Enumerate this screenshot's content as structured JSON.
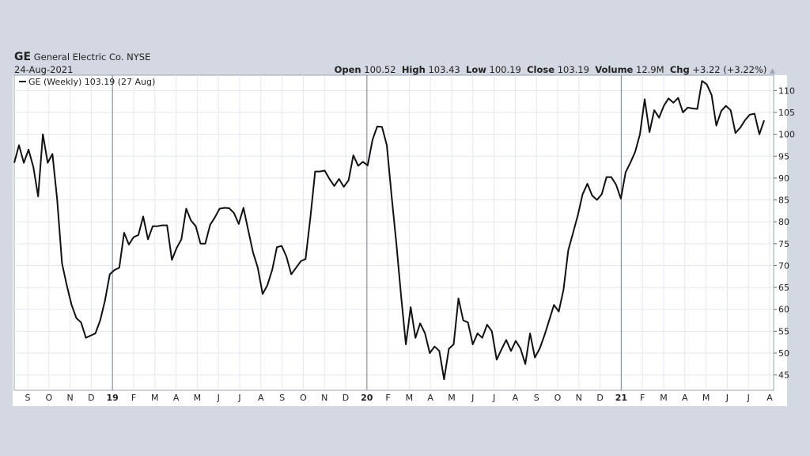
{
  "header": {
    "ticker": "GE",
    "company": "General Electric Co.",
    "exchange": "NYSE",
    "date": "24-Aug-2021",
    "quote": {
      "open_label": "Open",
      "open": "100.52",
      "high_label": "High",
      "high": "103.43",
      "low_label": "Low",
      "low": "100.19",
      "close_label": "Close",
      "close": "103.19",
      "volume_label": "Volume",
      "volume": "12.9M",
      "chg_label": "Chg",
      "chg": "+3.22 (+3.22%)",
      "chg_arrow": "▲"
    }
  },
  "chart_data": {
    "type": "line",
    "legend": "GE (Weekly) 103.19 (27 Aug)",
    "legend_placement": "top-left",
    "grid": true,
    "ylim": [
      41.5,
      113.5
    ],
    "y_ticks": [
      45,
      50,
      55,
      60,
      65,
      70,
      75,
      80,
      85,
      90,
      95,
      100,
      105,
      110
    ],
    "x_ticks": [
      "S",
      "O",
      "N",
      "D",
      "19",
      "F",
      "M",
      "A",
      "M",
      "J",
      "J",
      "A",
      "S",
      "O",
      "N",
      "D",
      "20",
      "F",
      "M",
      "A",
      "M",
      "J",
      "J",
      "A",
      "S",
      "O",
      "N",
      "D",
      "21",
      "F",
      "M",
      "A",
      "M",
      "J",
      "J",
      "A"
    ],
    "series": [
      {
        "name": "GE (Weekly)",
        "color": "#111111",
        "values": [
          93.5,
          97.5,
          93.5,
          96.5,
          92.5,
          85.8,
          100.0,
          93.5,
          95.5,
          85.0,
          70.5,
          65.5,
          61.0,
          58.0,
          57.0,
          53.5,
          54.0,
          54.5,
          57.5,
          62.0,
          68.0,
          69.0,
          69.5,
          77.5,
          74.8,
          76.5,
          77.0,
          81.2,
          76.0,
          79.0,
          79.0,
          79.2,
          79.2,
          71.3,
          74.0,
          76.0,
          83.0,
          80.3,
          79.0,
          75.0,
          75.0,
          79.3,
          81.0,
          83.0,
          83.2,
          83.1,
          82.0,
          79.5,
          83.2,
          78.0,
          73.0,
          69.5,
          63.5,
          65.5,
          69.0,
          74.2,
          74.5,
          72.0,
          68.0,
          69.5,
          71.0,
          71.5,
          81.0,
          91.5,
          91.5,
          91.7,
          89.8,
          88.2,
          89.8,
          88.0,
          89.5,
          95.2,
          92.8,
          93.7,
          92.9,
          98.7,
          101.8,
          101.7,
          97.5,
          86.0,
          75.0,
          63.0,
          52.0,
          60.5,
          53.5,
          56.8,
          54.5,
          50.0,
          51.5,
          50.5,
          44.0,
          51.0,
          52.0,
          62.5,
          57.5,
          57.0,
          52.0,
          54.5,
          53.5,
          56.5,
          55.0,
          48.5,
          50.8,
          53.0,
          50.5,
          52.8,
          51.0,
          47.5,
          54.5,
          49.0,
          51.0,
          54.0,
          57.5,
          61.0,
          59.5,
          64.5,
          73.5,
          77.5,
          81.5,
          86.3,
          88.7,
          86.0,
          85.0,
          86.3,
          90.2,
          90.2,
          88.5,
          85.3,
          91.3,
          93.5,
          96.0,
          100.0,
          108.0,
          100.5,
          105.5,
          103.8,
          106.5,
          108.2,
          107.2,
          108.3,
          105.0,
          106.1,
          105.9,
          105.8,
          112.2,
          111.4,
          109.0,
          102.0,
          105.3,
          106.5,
          105.5,
          100.3,
          101.5,
          103.2,
          104.5,
          104.7,
          100.0,
          103.19
        ]
      }
    ]
  }
}
